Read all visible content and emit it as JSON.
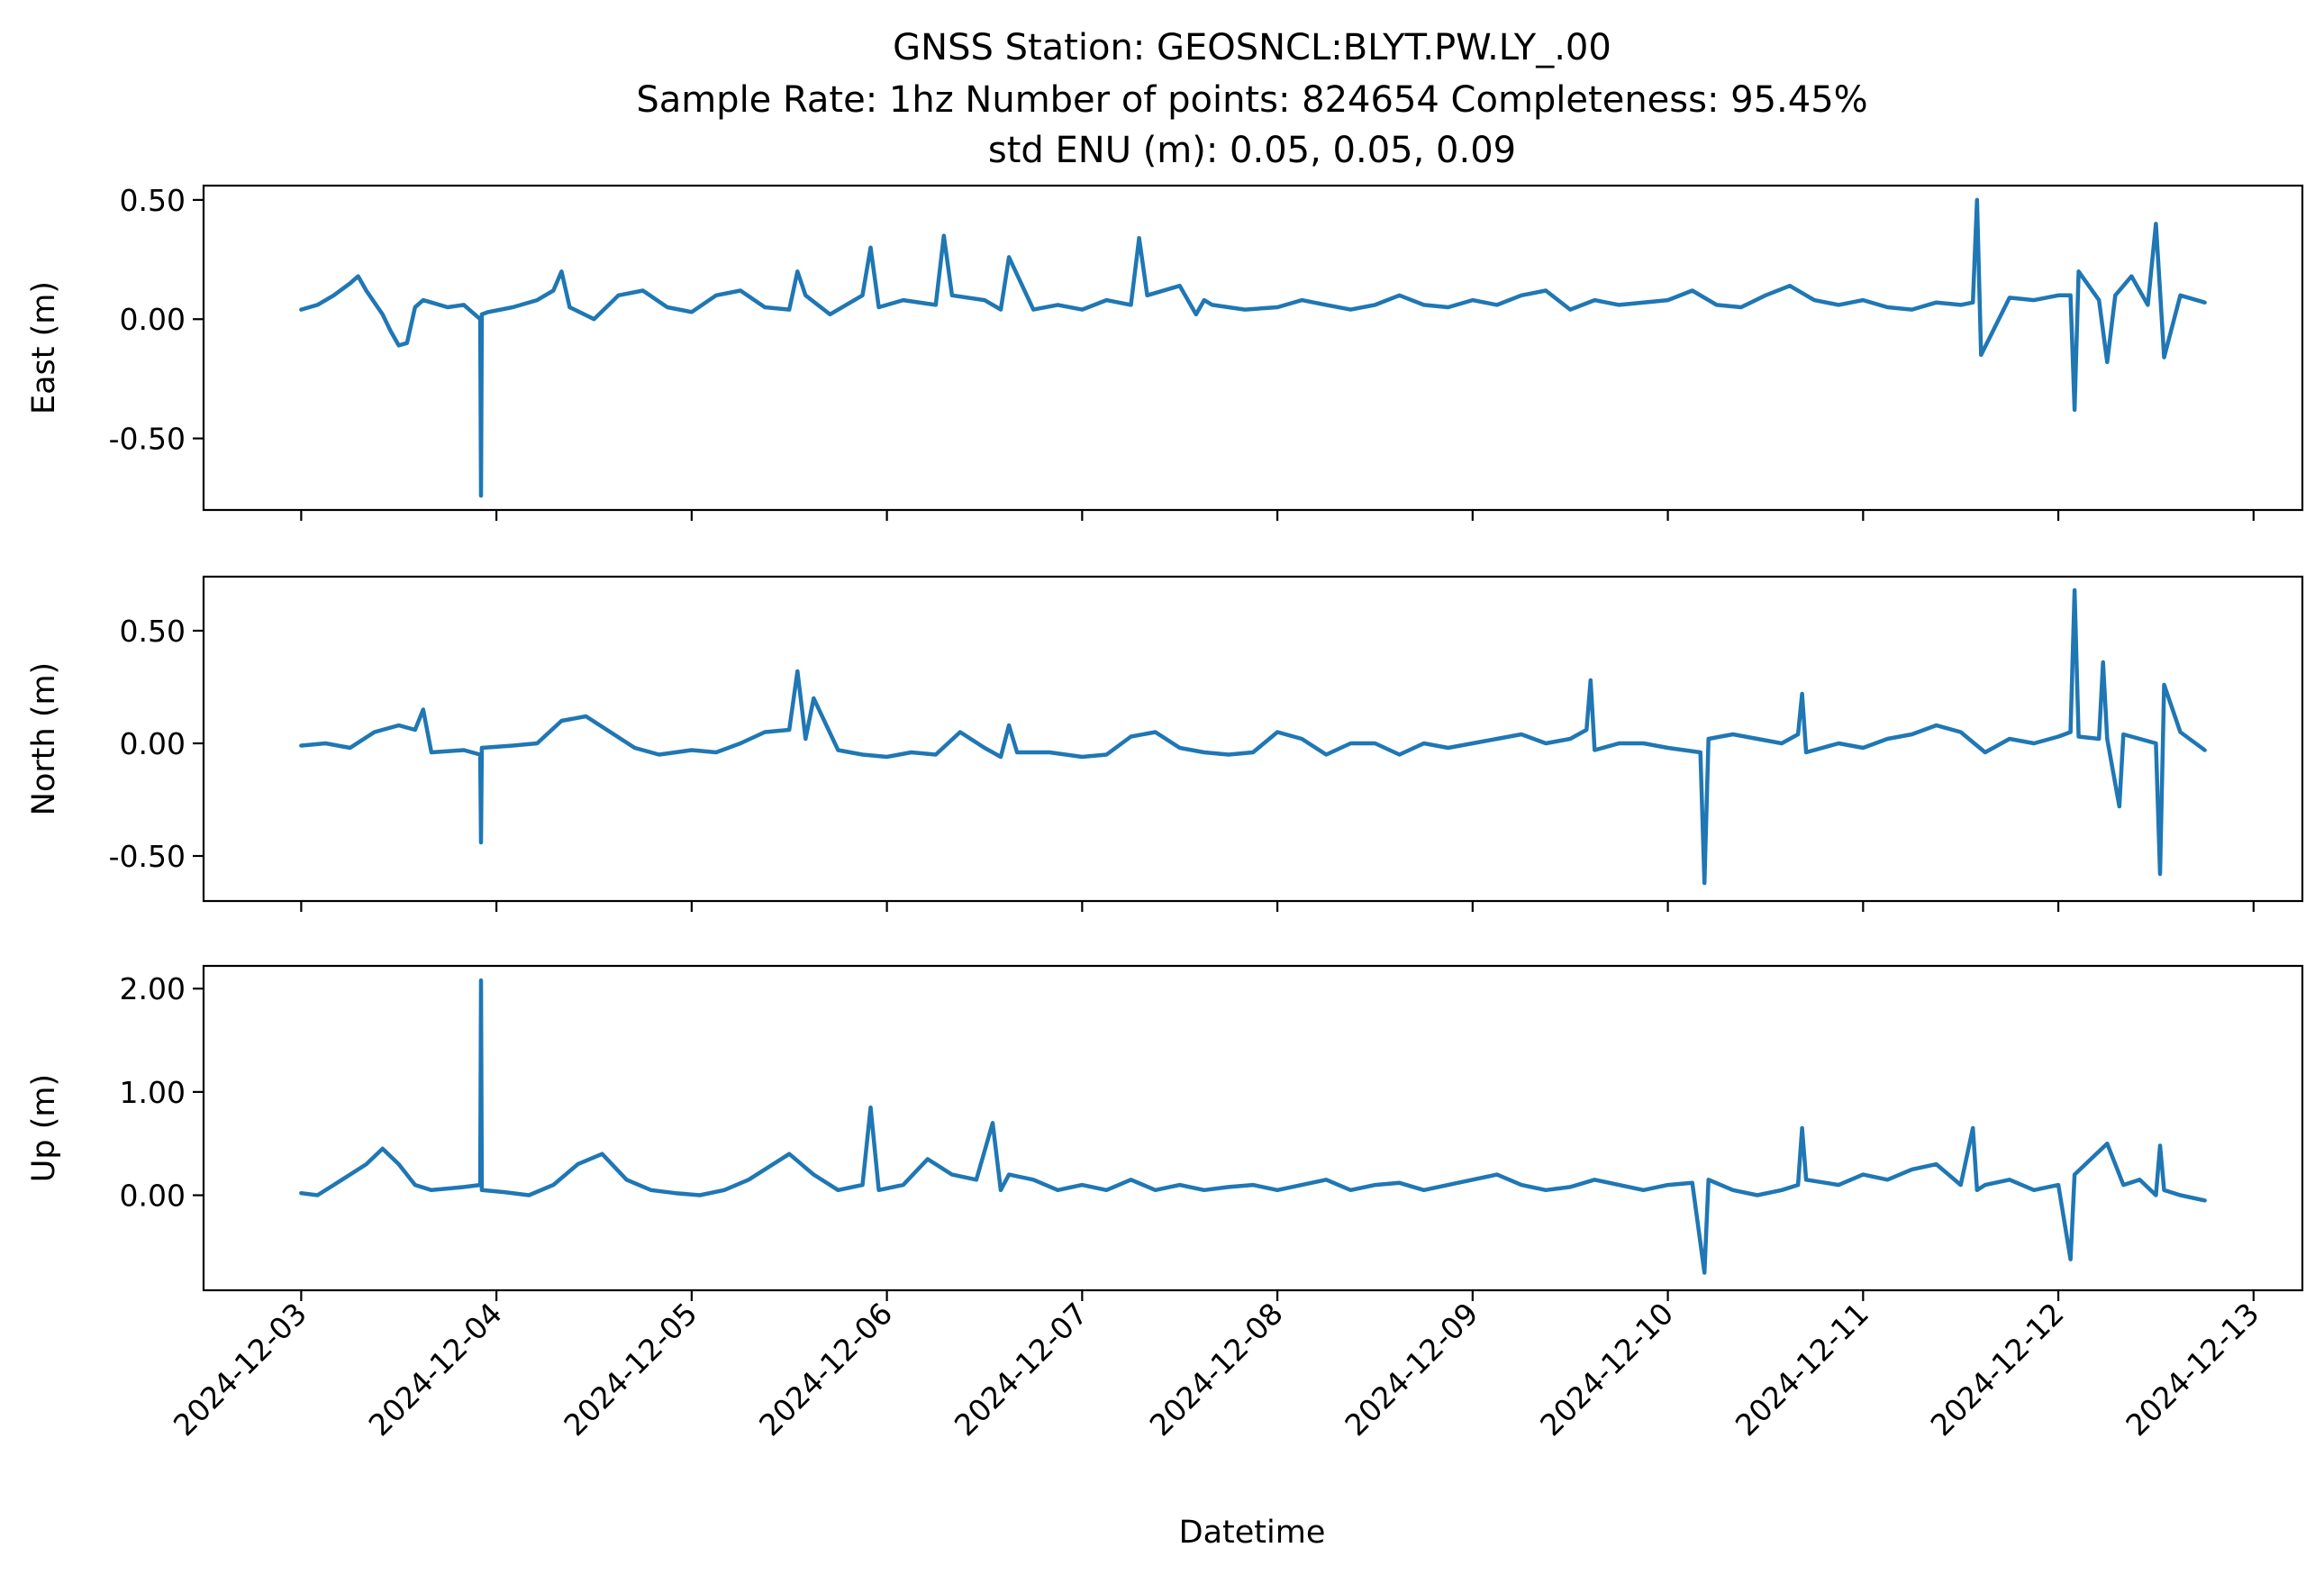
{
  "figure": {
    "title_lines": [
      "GNSS Station: GEOSNCL:BLYT.PW.LY_.00",
      "Sample Rate: 1hz   Number of points: 824654    Completeness:  95.45%",
      "std ENU (m):  0.05, 0.05, 0.09"
    ],
    "xlabel": "Datetime",
    "line_color": "#1f77b4"
  },
  "chart_data": [
    {
      "type": "line",
      "ylabel": "East (m)",
      "xlim": [
        "2024-12-02T12:00",
        "2024-12-13T06:00"
      ],
      "ylim": [
        -0.8,
        0.56
      ],
      "yticks": [
        -0.5,
        0.0,
        0.5
      ],
      "ytick_labels": [
        "-0.50",
        "0.00",
        "0.50"
      ],
      "xtick_dates": [
        "2024-12-03",
        "2024-12-04",
        "2024-12-05",
        "2024-12-06",
        "2024-12-07",
        "2024-12-08",
        "2024-12-09",
        "2024-12-10",
        "2024-12-11",
        "2024-12-12",
        "2024-12-13"
      ],
      "series": [
        {
          "x": [
            "2024-12-03T00:00",
            "2024-12-03T02:00",
            "2024-12-03T04:00",
            "2024-12-03T06:00",
            "2024-12-03T07:00",
            "2024-12-03T08:00",
            "2024-12-03T10:00",
            "2024-12-03T11:00",
            "2024-12-03T12:00",
            "2024-12-03T13:00",
            "2024-12-03T14:00",
            "2024-12-03T15:00",
            "2024-12-03T16:00",
            "2024-12-03T18:00",
            "2024-12-03T20:00",
            "2024-12-03T21:00",
            "2024-12-03T22:00",
            "2024-12-03T22:06",
            "2024-12-03T22:12",
            "2024-12-03T23:00",
            "2024-12-04T02:00",
            "2024-12-04T05:00",
            "2024-12-04T07:00",
            "2024-12-04T08:00",
            "2024-12-04T09:00",
            "2024-12-04T12:00",
            "2024-12-04T15:00",
            "2024-12-04T18:00",
            "2024-12-04T21:00",
            "2024-12-05T00:00",
            "2024-12-05T03:00",
            "2024-12-05T06:00",
            "2024-12-05T09:00",
            "2024-12-05T12:00",
            "2024-12-05T13:00",
            "2024-12-05T14:00",
            "2024-12-05T17:00",
            "2024-12-05T21:00",
            "2024-12-05T22:00",
            "2024-12-05T23:00",
            "2024-12-06T02:00",
            "2024-12-06T06:00",
            "2024-12-06T07:00",
            "2024-12-06T08:00",
            "2024-12-06T12:00",
            "2024-12-06T14:00",
            "2024-12-06T15:00",
            "2024-12-06T18:00",
            "2024-12-06T21:00",
            "2024-12-07T00:00",
            "2024-12-07T03:00",
            "2024-12-07T06:00",
            "2024-12-07T07:00",
            "2024-12-07T08:00",
            "2024-12-07T12:00",
            "2024-12-07T14:00",
            "2024-12-07T15:00",
            "2024-12-07T16:00",
            "2024-12-07T20:00",
            "2024-12-08T00:00",
            "2024-12-08T03:00",
            "2024-12-08T06:00",
            "2024-12-08T09:00",
            "2024-12-08T12:00",
            "2024-12-08T15:00",
            "2024-12-08T18:00",
            "2024-12-08T21:00",
            "2024-12-09T00:00",
            "2024-12-09T03:00",
            "2024-12-09T06:00",
            "2024-12-09T09:00",
            "2024-12-09T12:00",
            "2024-12-09T15:00",
            "2024-12-09T18:00",
            "2024-12-09T21:00",
            "2024-12-10T00:00",
            "2024-12-10T03:00",
            "2024-12-10T06:00",
            "2024-12-10T09:00",
            "2024-12-10T12:00",
            "2024-12-10T15:00",
            "2024-12-10T18:00",
            "2024-12-10T21:00",
            "2024-12-11T00:00",
            "2024-12-11T03:00",
            "2024-12-11T06:00",
            "2024-12-11T09:00",
            "2024-12-11T12:00",
            "2024-12-11T13:30",
            "2024-12-11T14:00",
            "2024-12-11T14:30",
            "2024-12-11T18:00",
            "2024-12-11T21:00",
            "2024-12-12T00:00",
            "2024-12-12T01:30",
            "2024-12-12T02:00",
            "2024-12-12T02:30",
            "2024-12-12T05:00",
            "2024-12-12T06:00",
            "2024-12-12T07:00",
            "2024-12-12T09:00",
            "2024-12-12T11:00",
            "2024-12-12T12:00",
            "2024-12-12T13:00",
            "2024-12-12T15:00",
            "2024-12-12T18:00"
          ],
          "y": [
            0.04,
            0.06,
            0.1,
            0.15,
            0.18,
            0.12,
            0.02,
            -0.05,
            -0.11,
            -0.1,
            0.05,
            0.08,
            0.07,
            0.05,
            0.06,
            0.03,
            0.0,
            -0.74,
            0.02,
            0.03,
            0.05,
            0.08,
            0.12,
            0.2,
            0.05,
            0.0,
            0.1,
            0.12,
            0.05,
            0.03,
            0.1,
            0.12,
            0.05,
            0.04,
            0.2,
            0.1,
            0.02,
            0.1,
            0.3,
            0.05,
            0.08,
            0.06,
            0.35,
            0.1,
            0.08,
            0.04,
            0.26,
            0.04,
            0.06,
            0.04,
            0.08,
            0.06,
            0.34,
            0.1,
            0.14,
            0.02,
            0.08,
            0.06,
            0.04,
            0.05,
            0.08,
            0.06,
            0.04,
            0.06,
            0.1,
            0.06,
            0.05,
            0.08,
            0.06,
            0.1,
            0.12,
            0.04,
            0.08,
            0.06,
            0.07,
            0.08,
            0.12,
            0.06,
            0.05,
            0.1,
            0.14,
            0.08,
            0.06,
            0.08,
            0.05,
            0.04,
            0.07,
            0.06,
            0.07,
            0.5,
            -0.15,
            0.09,
            0.08,
            0.1,
            0.1,
            -0.38,
            0.2,
            0.08,
            -0.18,
            0.1,
            0.18,
            0.06,
            0.4,
            -0.16,
            0.1,
            0.07
          ]
        }
      ]
    },
    {
      "type": "line",
      "ylabel": "North (m)",
      "xlim": [
        "2024-12-02T12:00",
        "2024-12-13T06:00"
      ],
      "ylim": [
        -0.7,
        0.74
      ],
      "yticks": [
        -0.5,
        0.0,
        0.5
      ],
      "ytick_labels": [
        "-0.50",
        "0.00",
        "0.50"
      ],
      "xtick_dates": [
        "2024-12-03",
        "2024-12-04",
        "2024-12-05",
        "2024-12-06",
        "2024-12-07",
        "2024-12-08",
        "2024-12-09",
        "2024-12-10",
        "2024-12-11",
        "2024-12-12",
        "2024-12-13"
      ],
      "series": [
        {
          "x": [
            "2024-12-03T00:00",
            "2024-12-03T03:00",
            "2024-12-03T06:00",
            "2024-12-03T09:00",
            "2024-12-03T12:00",
            "2024-12-03T14:00",
            "2024-12-03T15:00",
            "2024-12-03T16:00",
            "2024-12-03T20:00",
            "2024-12-03T22:00",
            "2024-12-03T22:06",
            "2024-12-03T22:12",
            "2024-12-04T02:00",
            "2024-12-04T05:00",
            "2024-12-04T08:00",
            "2024-12-04T11:00",
            "2024-12-04T14:00",
            "2024-12-04T17:00",
            "2024-12-04T20:00",
            "2024-12-05T00:00",
            "2024-12-05T03:00",
            "2024-12-05T06:00",
            "2024-12-05T09:00",
            "2024-12-05T12:00",
            "2024-12-05T13:00",
            "2024-12-05T14:00",
            "2024-12-05T15:00",
            "2024-12-05T18:00",
            "2024-12-05T21:00",
            "2024-12-06T00:00",
            "2024-12-06T03:00",
            "2024-12-06T06:00",
            "2024-12-06T09:00",
            "2024-12-06T12:00",
            "2024-12-06T14:00",
            "2024-12-06T15:00",
            "2024-12-06T16:00",
            "2024-12-06T20:00",
            "2024-12-07T00:00",
            "2024-12-07T03:00",
            "2024-12-07T06:00",
            "2024-12-07T09:00",
            "2024-12-07T12:00",
            "2024-12-07T15:00",
            "2024-12-07T18:00",
            "2024-12-07T21:00",
            "2024-12-08T00:00",
            "2024-12-08T03:00",
            "2024-12-08T06:00",
            "2024-12-08T09:00",
            "2024-12-08T12:00",
            "2024-12-08T15:00",
            "2024-12-08T18:00",
            "2024-12-08T21:00",
            "2024-12-09T00:00",
            "2024-12-09T03:00",
            "2024-12-09T06:00",
            "2024-12-09T09:00",
            "2024-12-09T12:00",
            "2024-12-09T14:00",
            "2024-12-09T14:30",
            "2024-12-09T15:00",
            "2024-12-09T18:00",
            "2024-12-09T21:00",
            "2024-12-10T00:00",
            "2024-12-10T04:00",
            "2024-12-10T04:30",
            "2024-12-10T05:00",
            "2024-12-10T08:00",
            "2024-12-10T11:00",
            "2024-12-10T14:00",
            "2024-12-10T16:00",
            "2024-12-10T16:30",
            "2024-12-10T17:00",
            "2024-12-10T21:00",
            "2024-12-11T00:00",
            "2024-12-11T03:00",
            "2024-12-11T06:00",
            "2024-12-11T09:00",
            "2024-12-11T12:00",
            "2024-12-11T15:00",
            "2024-12-11T18:00",
            "2024-12-11T21:00",
            "2024-12-12T00:00",
            "2024-12-12T01:30",
            "2024-12-12T02:00",
            "2024-12-12T02:30",
            "2024-12-12T05:00",
            "2024-12-12T05:30",
            "2024-12-12T06:00",
            "2024-12-12T07:30",
            "2024-12-12T08:00",
            "2024-12-12T10:00",
            "2024-12-12T12:00",
            "2024-12-12T12:30",
            "2024-12-12T13:00",
            "2024-12-12T15:00",
            "2024-12-12T18:00"
          ],
          "y": [
            -0.01,
            0.0,
            -0.02,
            0.05,
            0.08,
            0.06,
            0.15,
            -0.04,
            -0.03,
            -0.05,
            -0.44,
            -0.02,
            -0.01,
            0.0,
            0.1,
            0.12,
            0.05,
            -0.02,
            -0.05,
            -0.03,
            -0.04,
            0.0,
            0.05,
            0.06,
            0.32,
            0.02,
            0.2,
            -0.03,
            -0.05,
            -0.06,
            -0.04,
            -0.05,
            0.05,
            -0.02,
            -0.06,
            0.08,
            -0.04,
            -0.04,
            -0.06,
            -0.05,
            0.03,
            0.05,
            -0.02,
            -0.04,
            -0.05,
            -0.04,
            0.05,
            0.02,
            -0.05,
            0.0,
            0.0,
            -0.05,
            0.0,
            -0.02,
            0.0,
            0.02,
            0.04,
            0.0,
            0.02,
            0.06,
            0.28,
            -0.03,
            0.0,
            0.0,
            -0.02,
            -0.04,
            -0.62,
            0.02,
            0.04,
            0.02,
            0.0,
            0.04,
            0.22,
            -0.04,
            0.0,
            -0.02,
            0.02,
            0.04,
            0.08,
            0.05,
            -0.04,
            0.02,
            0.0,
            0.03,
            0.05,
            0.68,
            0.03,
            0.02,
            0.36,
            0.02,
            -0.28,
            0.04,
            0.02,
            0.0,
            -0.58,
            0.26,
            0.05,
            -0.03
          ]
        }
      ]
    },
    {
      "type": "line",
      "ylabel": "Up (m)",
      "xlim": [
        "2024-12-02T12:00",
        "2024-12-13T06:00"
      ],
      "ylim": [
        -0.92,
        2.22
      ],
      "yticks": [
        0.0,
        1.0,
        2.0
      ],
      "ytick_labels": [
        "0.00",
        "1.00",
        "2.00"
      ],
      "xtick_dates": [
        "2024-12-03",
        "2024-12-04",
        "2024-12-05",
        "2024-12-06",
        "2024-12-07",
        "2024-12-08",
        "2024-12-09",
        "2024-12-10",
        "2024-12-11",
        "2024-12-12",
        "2024-12-13"
      ],
      "series": [
        {
          "x": [
            "2024-12-03T00:00",
            "2024-12-03T02:00",
            "2024-12-03T04:00",
            "2024-12-03T06:00",
            "2024-12-03T08:00",
            "2024-12-03T10:00",
            "2024-12-03T12:00",
            "2024-12-03T14:00",
            "2024-12-03T16:00",
            "2024-12-03T20:00",
            "2024-12-03T22:00",
            "2024-12-03T22:06",
            "2024-12-03T22:12",
            "2024-12-04T01:00",
            "2024-12-04T04:00",
            "2024-12-04T07:00",
            "2024-12-04T10:00",
            "2024-12-04T13:00",
            "2024-12-04T16:00",
            "2024-12-04T19:00",
            "2024-12-04T22:00",
            "2024-12-05T01:00",
            "2024-12-05T04:00",
            "2024-12-05T07:00",
            "2024-12-05T10:00",
            "2024-12-05T12:00",
            "2024-12-05T15:00",
            "2024-12-05T18:00",
            "2024-12-05T21:00",
            "2024-12-05T22:00",
            "2024-12-05T23:00",
            "2024-12-06T02:00",
            "2024-12-06T05:00",
            "2024-12-06T08:00",
            "2024-12-06T11:00",
            "2024-12-06T13:00",
            "2024-12-06T14:00",
            "2024-12-06T15:00",
            "2024-12-06T18:00",
            "2024-12-06T21:00",
            "2024-12-07T00:00",
            "2024-12-07T03:00",
            "2024-12-07T06:00",
            "2024-12-07T09:00",
            "2024-12-07T12:00",
            "2024-12-07T15:00",
            "2024-12-07T18:00",
            "2024-12-07T21:00",
            "2024-12-08T00:00",
            "2024-12-08T03:00",
            "2024-12-08T06:00",
            "2024-12-08T09:00",
            "2024-12-08T12:00",
            "2024-12-08T15:00",
            "2024-12-08T18:00",
            "2024-12-08T21:00",
            "2024-12-09T00:00",
            "2024-12-09T03:00",
            "2024-12-09T06:00",
            "2024-12-09T09:00",
            "2024-12-09T12:00",
            "2024-12-09T15:00",
            "2024-12-09T18:00",
            "2024-12-09T21:00",
            "2024-12-10T00:00",
            "2024-12-10T03:00",
            "2024-12-10T04:30",
            "2024-12-10T05:00",
            "2024-12-10T08:00",
            "2024-12-10T11:00",
            "2024-12-10T14:00",
            "2024-12-10T16:00",
            "2024-12-10T16:30",
            "2024-12-10T17:00",
            "2024-12-10T21:00",
            "2024-12-11T00:00",
            "2024-12-11T03:00",
            "2024-12-11T06:00",
            "2024-12-11T09:00",
            "2024-12-11T12:00",
            "2024-12-11T13:30",
            "2024-12-11T14:00",
            "2024-12-11T15:00",
            "2024-12-11T18:00",
            "2024-12-11T21:00",
            "2024-12-12T00:00",
            "2024-12-12T01:30",
            "2024-12-12T02:00",
            "2024-12-12T04:00",
            "2024-12-12T06:00",
            "2024-12-12T08:00",
            "2024-12-12T10:00",
            "2024-12-12T12:00",
            "2024-12-12T12:30",
            "2024-12-12T13:00",
            "2024-12-12T15:00",
            "2024-12-12T18:00"
          ],
          "y": [
            0.02,
            0.0,
            0.1,
            0.2,
            0.3,
            0.45,
            0.3,
            0.1,
            0.05,
            0.08,
            0.1,
            2.08,
            0.05,
            0.03,
            0.0,
            0.1,
            0.3,
            0.4,
            0.15,
            0.05,
            0.02,
            0.0,
            0.05,
            0.15,
            0.3,
            0.4,
            0.2,
            0.05,
            0.1,
            0.85,
            0.05,
            0.1,
            0.35,
            0.2,
            0.15,
            0.7,
            0.05,
            0.2,
            0.15,
            0.05,
            0.1,
            0.05,
            0.15,
            0.05,
            0.1,
            0.05,
            0.08,
            0.1,
            0.05,
            0.1,
            0.15,
            0.05,
            0.1,
            0.12,
            0.05,
            0.1,
            0.15,
            0.2,
            0.1,
            0.05,
            0.08,
            0.15,
            0.1,
            0.05,
            0.1,
            0.12,
            -0.75,
            0.15,
            0.05,
            0.0,
            0.05,
            0.1,
            0.65,
            0.15,
            0.1,
            0.2,
            0.15,
            0.25,
            0.3,
            0.1,
            0.65,
            0.05,
            0.1,
            0.15,
            0.05,
            0.1,
            -0.62,
            0.2,
            0.35,
            0.5,
            0.1,
            0.15,
            0.0,
            0.48,
            0.05,
            0.0,
            -0.05
          ]
        }
      ]
    }
  ]
}
